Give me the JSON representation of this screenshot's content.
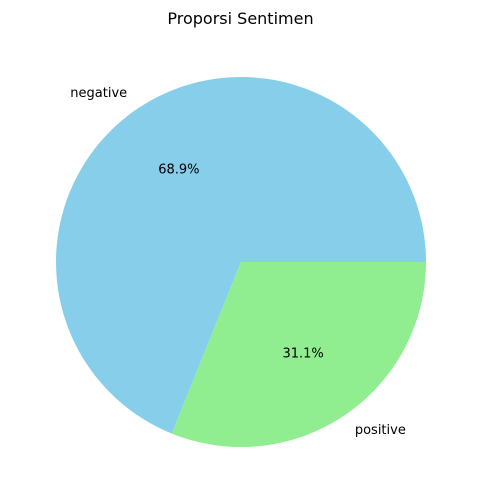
{
  "chart_data": {
    "type": "pie",
    "title": "Proporsi Sentimen",
    "labels": [
      "negative",
      "positive"
    ],
    "values": [
      68.9,
      31.1
    ],
    "value_labels": [
      "68.9%",
      "31.1%"
    ],
    "colors": [
      "#87ceeb",
      "#90ee90"
    ],
    "start_angle_deg": 0,
    "direction": "counterclockwise",
    "legend": "none"
  }
}
